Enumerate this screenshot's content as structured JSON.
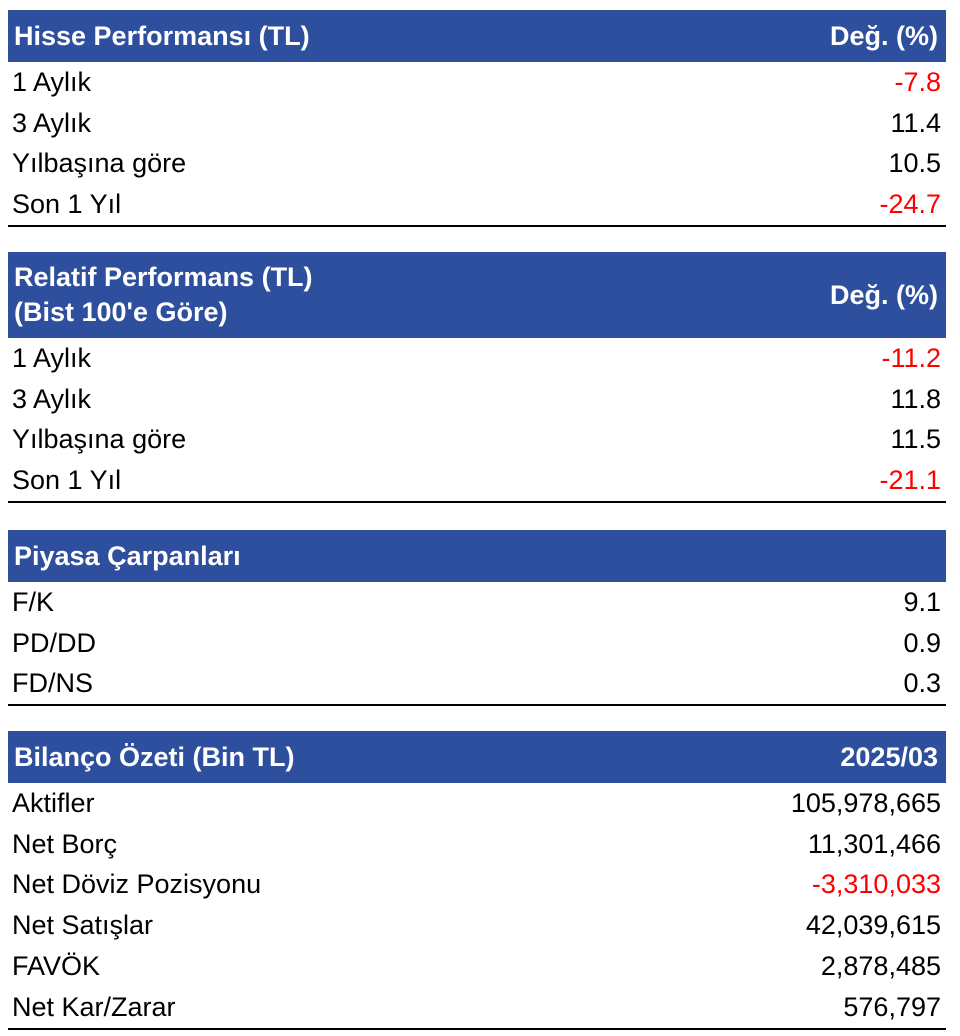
{
  "hisse": {
    "title": "Hisse Performansı (TL)",
    "col": "Değ. (%)",
    "rows": [
      {
        "label": "1 Aylık",
        "value": "-7.8"
      },
      {
        "label": "3 Aylık",
        "value": "11.4"
      },
      {
        "label": "Yılbaşına göre",
        "value": "10.5"
      },
      {
        "label": "Son 1 Yıl",
        "value": "-24.7"
      }
    ]
  },
  "relatif": {
    "title_line1": "Relatif Performans (TL)",
    "title_line2": "(Bist 100'e Göre)",
    "col": "Değ. (%)",
    "rows": [
      {
        "label": "1 Aylık",
        "value": "-11.2"
      },
      {
        "label": "3 Aylık",
        "value": "11.8"
      },
      {
        "label": "Yılbaşına göre",
        "value": "11.5"
      },
      {
        "label": "Son 1 Yıl",
        "value": "-21.1"
      }
    ]
  },
  "carpanlar": {
    "title": "Piyasa Çarpanları",
    "rows": [
      {
        "label": "F/K",
        "value": "9.1"
      },
      {
        "label": "PD/DD",
        "value": "0.9"
      },
      {
        "label": "FD/NS",
        "value": "0.3"
      }
    ]
  },
  "bilanco": {
    "title": "Bilanço Özeti (Bin TL)",
    "col": "2025/03",
    "rows": [
      {
        "label": "Aktifler",
        "value": "105,978,665"
      },
      {
        "label": "Net Borç",
        "value": "11,301,466"
      },
      {
        "label": "Net Döviz Pozisyonu",
        "value": "-3,310,033"
      },
      {
        "label": "Net Satışlar",
        "value": "42,039,615"
      },
      {
        "label": "FAVÖK",
        "value": "2,878,485"
      },
      {
        "label": "Net Kar/Zarar",
        "value": "576,797"
      }
    ]
  },
  "colors": {
    "header_bg": "#2e4f9e",
    "negative": "#ff0000"
  }
}
